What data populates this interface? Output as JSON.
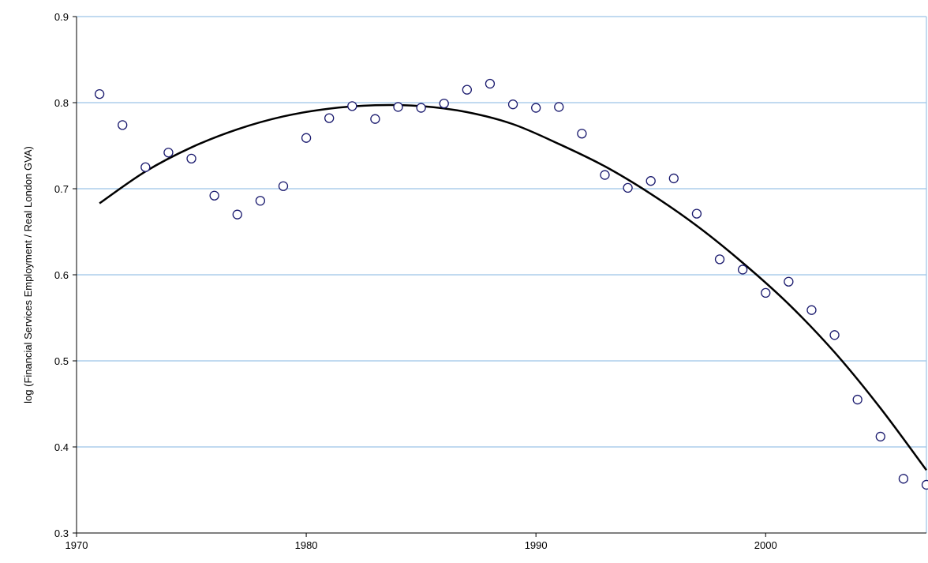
{
  "chart_data": {
    "type": "scatter",
    "title": "",
    "xlabel": "",
    "ylabel": "log (Financial Services Employment / Real London GVA)",
    "xlim": [
      1970,
      2007
    ],
    "ylim": [
      0.3,
      0.9
    ],
    "x_ticks": [
      1970,
      1980,
      1990,
      2000
    ],
    "y_ticks": [
      0.3,
      0.4,
      0.5,
      0.6,
      0.7,
      0.8,
      0.9
    ],
    "x_tick_labels": [
      "1970",
      "1980",
      "1990",
      "2000"
    ],
    "y_tick_labels": [
      "0.3",
      "0.4",
      "0.5",
      "0.6",
      "0.7",
      "0.8",
      "0.9"
    ],
    "grid": "horizontal",
    "marker": "open-circle",
    "marker_color": "#1a1a6e",
    "grid_color": "#9cc3e6",
    "series": [
      {
        "type": "scatter",
        "x": [
          1971,
          1972,
          1973,
          1974,
          1975,
          1976,
          1977,
          1978,
          1979,
          1980,
          1981,
          1982,
          1983,
          1984,
          1985,
          1986,
          1987,
          1988,
          1989,
          1990,
          1991,
          1992,
          1993,
          1994,
          1995,
          1996,
          1997,
          1998,
          1999,
          2000,
          2001,
          2002,
          2003,
          2004,
          2005,
          2006,
          2007
        ],
        "y": [
          0.81,
          0.774,
          0.725,
          0.742,
          0.735,
          0.692,
          0.67,
          0.686,
          0.703,
          0.759,
          0.782,
          0.796,
          0.781,
          0.795,
          0.794,
          0.799,
          0.815,
          0.822,
          0.798,
          0.794,
          0.795,
          0.764,
          0.716,
          0.701,
          0.709,
          0.712,
          0.671,
          0.618,
          0.606,
          0.579,
          0.592,
          0.559,
          0.53,
          0.455,
          0.412,
          0.363,
          0.356
        ]
      },
      {
        "type": "line",
        "trend": "polynomial",
        "x": [
          1971,
          1973,
          1975,
          1977,
          1979,
          1981,
          1983,
          1985,
          1987,
          1989,
          1991,
          1993,
          1995,
          1997,
          1999,
          2001,
          2003,
          2005,
          2007
        ],
        "y": [
          0.683,
          0.72,
          0.748,
          0.769,
          0.784,
          0.793,
          0.797,
          0.796,
          0.789,
          0.775,
          0.752,
          0.726,
          0.694,
          0.657,
          0.614,
          0.566,
          0.51,
          0.445,
          0.373
        ]
      }
    ]
  }
}
